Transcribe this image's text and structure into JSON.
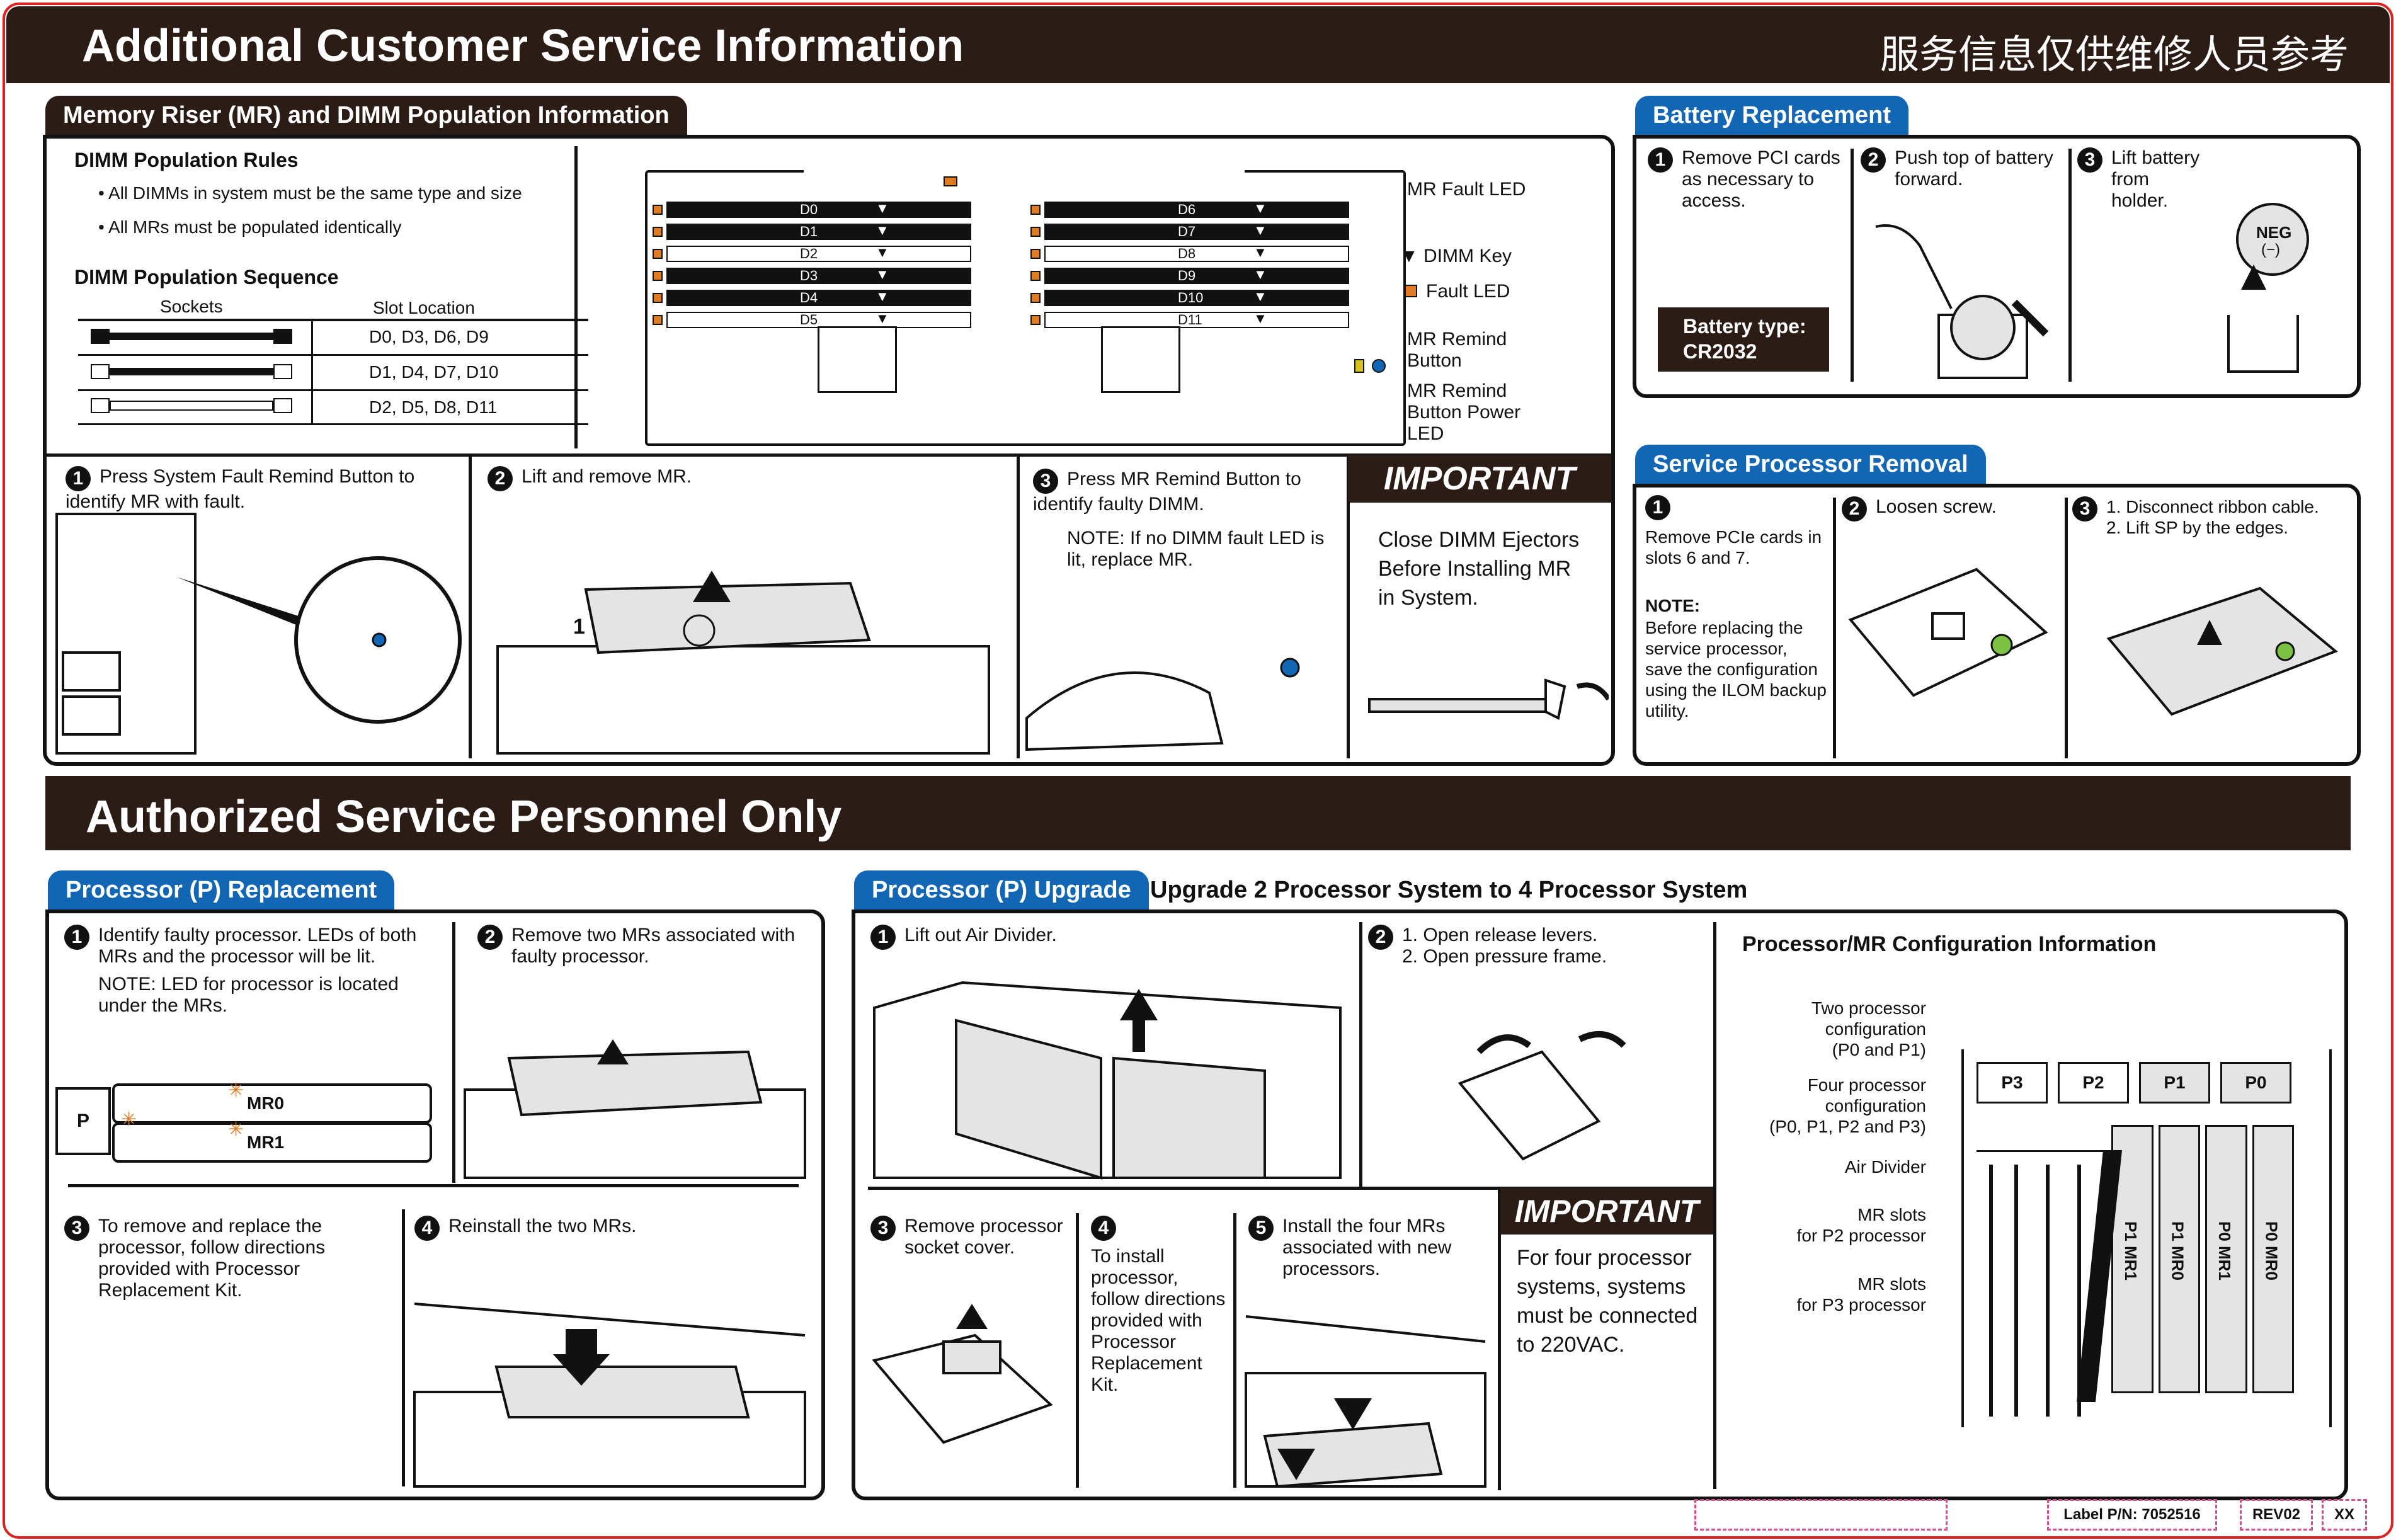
{
  "header": {
    "title": "Additional Customer Service Information",
    "chinese": "服务信息仅供维修人员参考"
  },
  "section2_title": "Authorized Service Personnel Only",
  "memory": {
    "tab": "Memory Riser (MR) and DIMM Population Information",
    "rules_title": "DIMM Population Rules",
    "rules": [
      "• All DIMMs in system must be the same type and size",
      "• All MRs must be populated identically"
    ],
    "sequence_title": "DIMM Population Sequence",
    "col_sockets": "Sockets",
    "col_slot": "Slot Location",
    "rows": [
      "D0, D3, D6, D9",
      "D1, D4, D7, D10",
      "D2, D5, D8, D11"
    ],
    "dimms_left": [
      "D0",
      "D1",
      "D2",
      "D3",
      "D4",
      "D5"
    ],
    "dimms_right": [
      "D6",
      "D7",
      "D8",
      "D9",
      "D10",
      "D11"
    ],
    "labels": {
      "mr_fault_led": "MR Fault LED",
      "dimm_key": "DIMM Key",
      "fault_led": "Fault LED",
      "mr_remind_button": "MR Remind\nButton",
      "mr_remind_power": "MR Remind\nButton Power\nLED"
    },
    "steps": [
      {
        "n": "1",
        "text": "Press System Fault Remind Button to identify MR with fault."
      },
      {
        "n": "2",
        "text": "Lift and remove MR."
      },
      {
        "n": "3",
        "text": "Press MR Remind Button to identify faulty DIMM.",
        "note": "NOTE: If no DIMM fault LED is lit, replace MR."
      }
    ],
    "important_title": "IMPORTANT",
    "important_text": "Close DIMM Ejectors Before Installing MR in System."
  },
  "battery": {
    "tab": "Battery Replacement",
    "steps": [
      {
        "n": "1",
        "text": "Remove PCI cards as necessary to access."
      },
      {
        "n": "2",
        "text": "Push top of battery forward."
      },
      {
        "n": "3",
        "text": "Lift battery from holder."
      }
    ],
    "type_label": "Battery type:",
    "type_value": "CR2032",
    "neg": "NEG",
    "neg_sym": "(−)"
  },
  "sp": {
    "tab": "Service Processor Removal",
    "steps": [
      {
        "n": "1",
        "text": "Remove PCIe cards in slots 6 and 7."
      },
      {
        "n": "2",
        "text": "Loosen screw."
      },
      {
        "n": "3",
        "text": "1. Disconnect ribbon cable.\n2. Lift SP by the edges."
      }
    ],
    "note_title": "NOTE:",
    "note_text": "Before replacing the service processor, save the configuration using the ILOM backup utility."
  },
  "proc_repl": {
    "tab": "Processor (P) Replacement",
    "steps": [
      {
        "n": "1",
        "text": "Identify faulty processor. LEDs of both MRs and the processor will be lit.",
        "note": "NOTE: LED for processor is located under the MRs."
      },
      {
        "n": "2",
        "text": "Remove two MRs associated with faulty processor."
      },
      {
        "n": "3",
        "text": "To remove and replace the processor, follow directions provided with Processor Replacement Kit."
      },
      {
        "n": "4",
        "text": "Reinstall the two MRs."
      }
    ],
    "p_label": "P",
    "mr0": "MR0",
    "mr1": "MR1"
  },
  "proc_up": {
    "tab": "Processor (P) Upgrade",
    "subtitle": "Upgrade 2 Processor System to 4 Processor System",
    "steps": [
      {
        "n": "1",
        "text": "Lift out Air Divider."
      },
      {
        "n": "2",
        "text": "1. Open release levers.\n2. Open pressure frame."
      },
      {
        "n": "3",
        "text": "Remove processor socket cover."
      },
      {
        "n": "4",
        "text": "To install processor, follow directions provided with Processor Replacement Kit."
      },
      {
        "n": "5",
        "text": "Install the four MRs associated with new processors."
      }
    ],
    "important_title": "IMPORTANT",
    "important_text": "For four processor systems, systems must be connected to 220VAC.",
    "config_title": "Processor/MR Configuration Information",
    "config_labels": [
      "Two processor\nconfiguration\n(P0 and P1)",
      "Four processor\nconfiguration\n(P0, P1, P2 and P3)",
      "Air Divider",
      "MR slots\nfor P2 processor",
      "MR slots\nfor P3 processor"
    ],
    "procs": [
      "P3",
      "P2",
      "P1",
      "P0"
    ],
    "mrs": [
      "P1 MR1",
      "P1 MR0",
      "P0 MR1",
      "P0 MR0"
    ]
  },
  "footer": {
    "label": "Label P/N: 7052516",
    "rev": "REV02",
    "xx": "XX"
  },
  "colors": {
    "accent_blue": "#1266b3",
    "dark": "#2b1d16",
    "orange": "#e07b22"
  }
}
